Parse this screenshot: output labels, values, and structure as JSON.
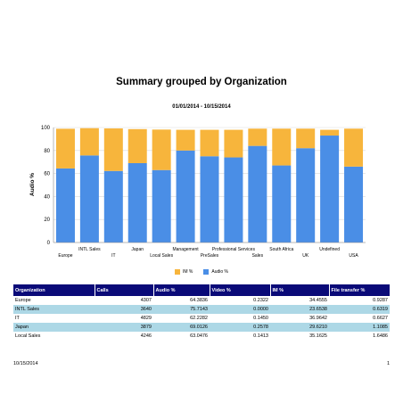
{
  "report": {
    "title": "Summary grouped by Organization",
    "subtitle": "01/01/2014 - 10/15/2014"
  },
  "chart_data": {
    "type": "bar",
    "stacked": true,
    "ylabel": "Audio %",
    "ylim": [
      0,
      100
    ],
    "yticks": [
      0,
      20,
      40,
      60,
      80,
      100
    ],
    "grid": true,
    "legend_position": "bottom",
    "categories": [
      "Europe",
      "INTL Sales",
      "IT",
      "Japan",
      "Local Sales",
      "Management",
      "PreSales",
      "Professional Services",
      "Sales",
      "South Africa",
      "UK",
      "Undefined",
      "USA"
    ],
    "series": [
      {
        "name": "Audio %",
        "color": "#4a8ee6",
        "values": [
          64.4,
          75.7,
          62.2,
          69.0,
          63.0,
          80.0,
          75.0,
          74.0,
          84.0,
          67.0,
          82.0,
          93.0,
          66.0
        ]
      },
      {
        "name": "IM %",
        "color": "#f7b53c",
        "values": [
          34.5,
          23.7,
          37.0,
          29.6,
          35.2,
          18.0,
          23.0,
          24.0,
          15.0,
          32.0,
          17.0,
          5.0,
          33.0
        ]
      }
    ]
  },
  "table": {
    "columns": [
      "Organization",
      "Calls",
      "Audio %",
      "Video %",
      "IM %",
      "File transfer %"
    ],
    "rows": [
      [
        "Europe",
        "4307",
        "64.3836",
        "0.2322",
        "34.4555",
        "0.9287"
      ],
      [
        "INTL Sales",
        "3640",
        "75.7143",
        "0.0000",
        "23.6538",
        "0.6319"
      ],
      [
        "IT",
        "4829",
        "62.2282",
        "0.1450",
        "36.9642",
        "0.6627"
      ],
      [
        "Japan",
        "3879",
        "69.0126",
        "0.2578",
        "29.6210",
        "1.1085"
      ],
      [
        "Local Sales",
        "4246",
        "63.0476",
        "0.1413",
        "35.1625",
        "1.6486"
      ]
    ]
  },
  "footer": {
    "date": "10/15/2014",
    "page": "1"
  }
}
